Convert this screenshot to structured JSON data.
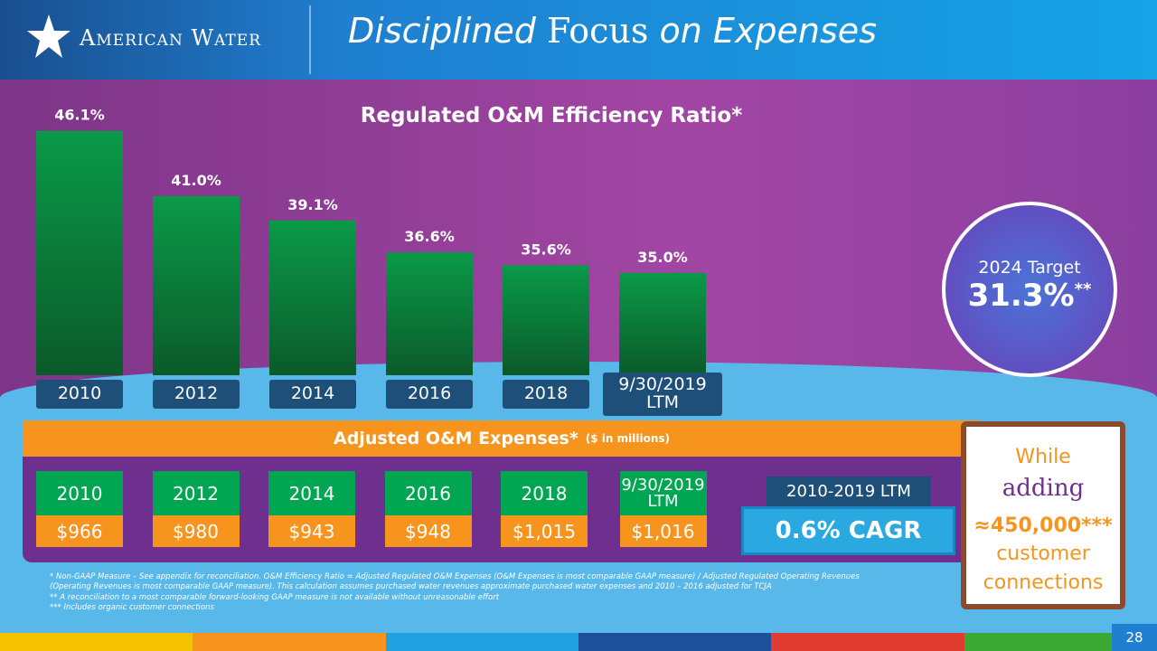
{
  "header": {
    "logo": "American Water",
    "title": [
      "Disciplined",
      "Focus",
      "on Expenses"
    ]
  },
  "chart_data": {
    "type": "bar",
    "title": "Regulated O&M Efficiency Ratio*",
    "categories": [
      "2010",
      "2012",
      "2014",
      "2016",
      "2018",
      "9/30/2019 LTM"
    ],
    "values": [
      46.1,
      41.0,
      39.1,
      36.6,
      35.6,
      35.0
    ],
    "value_labels": [
      "46.1%",
      "41.0%",
      "39.1%",
      "36.6%",
      "35.6%",
      "35.0%"
    ],
    "color": "#0a9a48",
    "ylim": [
      27,
      47
    ]
  },
  "target": {
    "label": "2024 Target",
    "value": "31.3%",
    "mark": "**"
  },
  "expenses": {
    "title": "Adjusted O&M Expenses*",
    "unit": "($ in millions)",
    "years": [
      "2010",
      "2012",
      "2014",
      "2016",
      "2018",
      "9/30/2019 LTM"
    ],
    "values": [
      "$966",
      "$980",
      "$943",
      "$948",
      "$1,015",
      "$1,016"
    ],
    "cagr_label": "2010-2019 LTM",
    "cagr": "0.6% CAGR"
  },
  "note": {
    "line1": "While",
    "line2": "adding",
    "line3": "≈450,000***",
    "line4": "customer",
    "line5": "connections"
  },
  "footnotes": [
    "* Non-GAAP Measure – See appendix for reconciliation. O&M Efficiency Ratio = Adjusted Regulated O&M Expenses (O&M Expenses is most comparable GAAP measure) / Adjusted Regulated Operating Revenues (Operating Revenues is most comparable GAAP measure). This calculation assumes purchased water revenues approximate purchased water expenses and 2010 – 2016 adjusted for TCJA",
    "** A reconciliation to a most comparable forward-looking GAAP measure is not available without unreasonable effort",
    "*** Includes organic customer connections"
  ],
  "page_number": "28"
}
